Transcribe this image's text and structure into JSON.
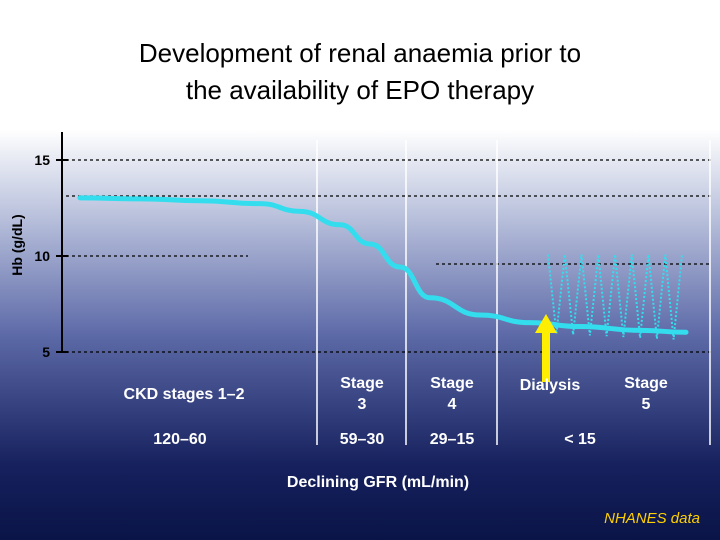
{
  "chart_data": {
    "type": "line",
    "title_lines": [
      "Development of renal anaemia prior to",
      "the availability of EPO therapy"
    ],
    "ylabel": "Hb (g/dL)",
    "xlabel": "Declining GFR (mL/min)",
    "y_ticks": [
      "15",
      "10",
      "5"
    ],
    "ylim": [
      5,
      15
    ],
    "grid": "dashed horizontal reference lines",
    "stage_labels": [
      {
        "name": "CKD stages  1–2",
        "gfr": "120–60"
      },
      {
        "name": "Stage\n3",
        "gfr": "59–30"
      },
      {
        "name": "Stage\n4",
        "gfr": "29–15"
      },
      {
        "name": "Dialysis",
        "gfr": "< 15"
      },
      {
        "name": "Stage\n5",
        "gfr": ""
      }
    ],
    "series": [
      {
        "values": [
          13.6,
          13.55,
          13.45,
          13.3,
          12.9,
          12.2,
          11.2,
          10.0,
          8.4,
          7.5,
          7.1,
          6.9,
          6.7,
          6.6
        ]
      }
    ],
    "dialysis_oscillation": {
      "high": 10.7,
      "low": 6.8,
      "cycles": 8
    },
    "colors": {
      "curve": "#33ddee",
      "zigzag": "#33ddee",
      "arrow": "#ffee00",
      "grid": "#000000",
      "source": "#ffd000"
    }
  },
  "source_note": "NHANES data"
}
